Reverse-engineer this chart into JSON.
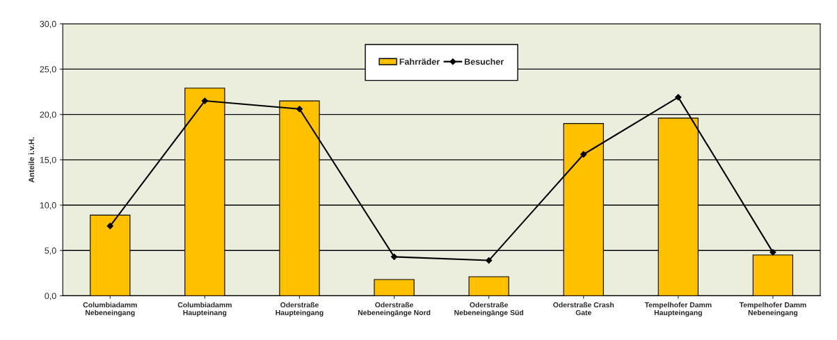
{
  "chart_data": {
    "type": "bar",
    "ylabel": "Anteile i.v.H.",
    "categories": [
      "Columbiadamm\nNebeneingang",
      "Columbiadamm\nHaupteinang",
      "Oderstraße\nHaupteingang",
      "Oderstraße\nNebeneingänge Nord",
      "Oderstraße\nNebeneingänge Süd",
      "Oderstraße Crash\nGate",
      "Tempelhofer Damm\nHaupteingang",
      "Tempelhofer Damm\nNebeneingang"
    ],
    "series": [
      {
        "name": "Fahrräder",
        "color": "#ffc000",
        "values": [
          8.9,
          22.9,
          21.5,
          1.8,
          2.1,
          19.0,
          19.6,
          4.5
        ]
      },
      {
        "name": "Besucher",
        "type": "line",
        "color": "#000000",
        "marker": "diamond",
        "values": [
          7.7,
          21.5,
          20.6,
          4.3,
          3.9,
          15.6,
          21.9,
          4.8
        ]
      }
    ],
    "ylim": [
      0,
      30
    ],
    "yticks": [
      {
        "value": 0,
        "label": "0,0"
      },
      {
        "value": 5,
        "label": "5,0"
      },
      {
        "value": 10,
        "label": "10,0"
      },
      {
        "value": 15,
        "label": "15,0"
      },
      {
        "value": 20,
        "label": "20,0"
      },
      {
        "value": 25,
        "label": "25,0"
      },
      {
        "value": 30,
        "label": "30,0"
      }
    ],
    "grid": "y",
    "legend": "top"
  }
}
